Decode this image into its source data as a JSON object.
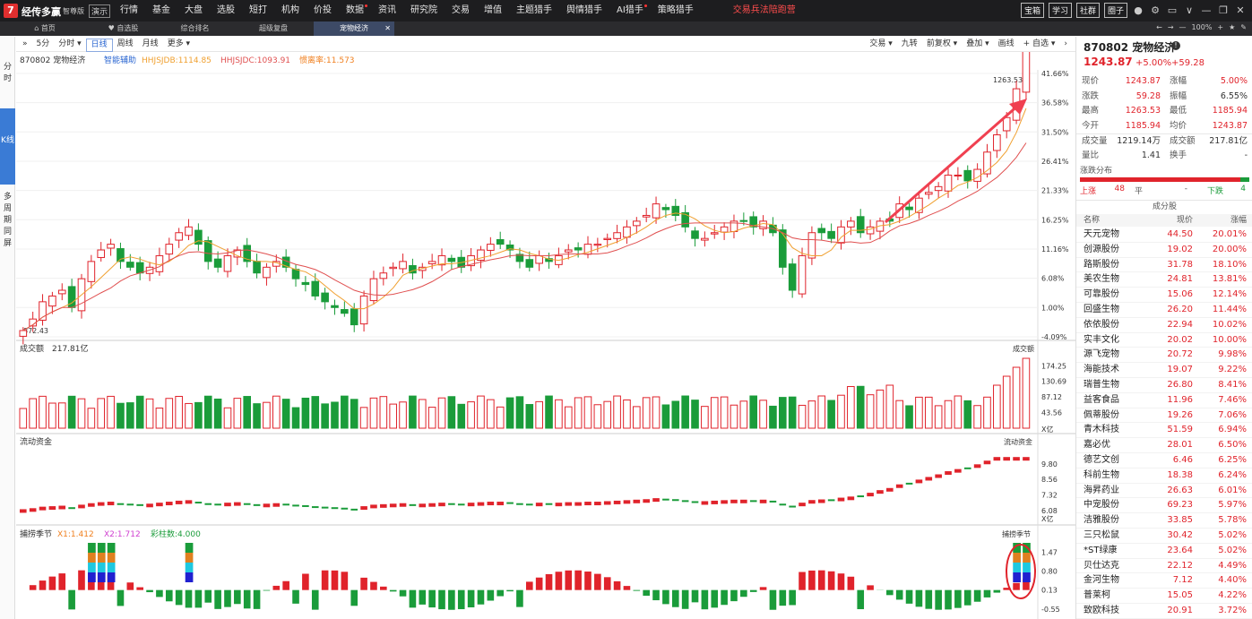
{
  "app": {
    "logo_char": "7",
    "brand": "经传多赢",
    "edition": "智尊版",
    "demo": "演示"
  },
  "menu": [
    "行情",
    "基金",
    "大盘",
    "选股",
    "短打",
    "机构",
    "价投",
    "数据",
    "资讯",
    "研究院",
    "交易",
    "增值",
    "主题猎手",
    "舆情猎手",
    "AI猎手",
    "策略猎手",
    "交易兵法陪跑营"
  ],
  "top_right": [
    "宝箱",
    "学习",
    "社群",
    "圈子"
  ],
  "tabs": [
    "首页",
    "自选股",
    "综合排名",
    "超级复盘",
    "宠物经济"
  ],
  "tab_right": {
    "zoom": "100%"
  },
  "left_tabs": [
    "分时",
    "K线",
    "多周期同屏"
  ],
  "toolbar_left": [
    "5分",
    "分时 ▾",
    "日线",
    "周线",
    "月线",
    "更多 ▾"
  ],
  "toolbar_right": [
    "交易 ▾",
    "九转",
    "前复权 ▾",
    "叠加 ▾",
    "画线",
    "+ 自选 ▾"
  ],
  "chart_header": {
    "code_name": "870802 宠物经济",
    "assist": "智能辅助",
    "ind1": "HHJSJDB:1114.85",
    "ind2": "HHJSJDC:1093.91",
    "ind3": "惯离率:11.573"
  },
  "panel_labels": {
    "volume": "成交额",
    "volume_value": "217.81亿",
    "volume_right": "成交额",
    "flow": "流动资金",
    "flow_right": "流动资金",
    "season": "捕捞季节",
    "x1": "X1:1.412",
    "x2": "X2:1.712",
    "bars": "彩柱数:4.000",
    "season_right": "捕捞季节"
  },
  "colors": {
    "up": "#e0232b",
    "down": "#1a9c3a",
    "ma1": "#f0a030",
    "ma2": "#e05050"
  },
  "chart_data": {
    "type": "candlestick",
    "price_axis": [
      "41.66%",
      "36.58%",
      "31.50%",
      "26.41%",
      "21.33%",
      "16.25%",
      "11.16%",
      "6.08%",
      "1.00%",
      "-4.09%"
    ],
    "high_label": "1263.53",
    "low_label": "872.43",
    "volume_axis": [
      "174.25",
      "130.69",
      "87.12",
      "43.56"
    ],
    "volume_unit": "X亿",
    "flow_axis": [
      "9.80",
      "8.56",
      "7.32",
      "6.08"
    ],
    "flow_unit": "X亿",
    "season_axis": [
      "1.47",
      "0.80",
      "0.13",
      "-0.55"
    ],
    "close_pct": [
      -3,
      -1,
      2,
      3,
      4,
      1,
      6,
      9,
      11,
      12,
      9,
      8,
      7,
      8,
      10,
      12,
      14,
      15,
      12,
      9,
      8,
      10,
      11,
      9,
      7,
      8,
      9,
      8,
      6,
      5,
      3,
      2,
      1,
      0,
      -2,
      3,
      6,
      7,
      8,
      9,
      7,
      8,
      9,
      10,
      9,
      8,
      10,
      11,
      12,
      12,
      11,
      9,
      8,
      10,
      9,
      10,
      11,
      11,
      12,
      12,
      13,
      14,
      15,
      16,
      17,
      19,
      18,
      17,
      15,
      13,
      13,
      14,
      15,
      16,
      16,
      15,
      16,
      14,
      8,
      4,
      10,
      14,
      14,
      13,
      15,
      16,
      14,
      15,
      16,
      16,
      19,
      18,
      20,
      21,
      22,
      24,
      24,
      23,
      25,
      28,
      31,
      34,
      39,
      46
    ]
  },
  "right_panel": {
    "title": "870802 宠物经济",
    "price": "1243.87",
    "chg_pct": "+5.00%",
    "chg_abs": "+59.28",
    "quote": [
      {
        "k": "现价",
        "v": "1243.87",
        "k2": "涨幅",
        "v2": "5.00%"
      },
      {
        "k": "涨跌",
        "v": "59.28",
        "k2": "振幅",
        "v2": "6.55%"
      },
      {
        "k": "最高",
        "v": "1263.53",
        "k2": "最低",
        "v2": "1185.94"
      },
      {
        "k": "今开",
        "v": "1185.94",
        "k2": "均价",
        "v2": "1243.87"
      },
      {
        "k": "成交量",
        "v": "1219.14万",
        "k2": "成交额",
        "v2": "217.81亿"
      },
      {
        "k": "量比",
        "v": "1.41",
        "k2": "换手",
        "v2": "-"
      }
    ],
    "dist_title": "涨跌分布",
    "dist": {
      "up_label": "上涨",
      "up": "48",
      "flat_label": "平",
      "flat": "-",
      "down_label": "下跌",
      "down": "4"
    },
    "section": "成分股",
    "list_head": [
      "名称",
      "现价",
      "涨幅"
    ],
    "stocks": [
      [
        "天元宠物",
        "44.50",
        "20.01%"
      ],
      [
        "创源股份",
        "19.02",
        "20.00%"
      ],
      [
        "路斯股份",
        "31.78",
        "18.10%"
      ],
      [
        "美农生物",
        "24.81",
        "13.81%"
      ],
      [
        "可靠股份",
        "15.06",
        "12.14%"
      ],
      [
        "回盛生物",
        "26.20",
        "11.44%"
      ],
      [
        "依依股份",
        "22.94",
        "10.02%"
      ],
      [
        "实丰文化",
        "20.02",
        "10.00%"
      ],
      [
        "源飞宠物",
        "20.72",
        "9.98%"
      ],
      [
        "海能技术",
        "19.07",
        "9.22%"
      ],
      [
        "瑞普生物",
        "26.80",
        "8.41%"
      ],
      [
        "益客食品",
        "11.96",
        "7.46%"
      ],
      [
        "佩蒂股份",
        "19.26",
        "7.06%"
      ],
      [
        "青木科技",
        "51.59",
        "6.94%"
      ],
      [
        "嘉必优",
        "28.01",
        "6.50%"
      ],
      [
        "德艺文创",
        "6.46",
        "6.25%"
      ],
      [
        "科前生物",
        "18.38",
        "6.24%"
      ],
      [
        "海昇药业",
        "26.63",
        "6.01%"
      ],
      [
        "中宠股份",
        "69.23",
        "5.97%"
      ],
      [
        "洁雅股份",
        "33.85",
        "5.78%"
      ],
      [
        "三只松鼠",
        "30.42",
        "5.02%"
      ],
      [
        "*ST绿康",
        "23.64",
        "5.02%"
      ],
      [
        "贝仕达克",
        "22.12",
        "4.49%"
      ],
      [
        "金河生物",
        "7.12",
        "4.40%"
      ],
      [
        "普莱柯",
        "15.05",
        "4.22%"
      ],
      [
        "致欧科技",
        "20.91",
        "3.72%"
      ]
    ]
  }
}
